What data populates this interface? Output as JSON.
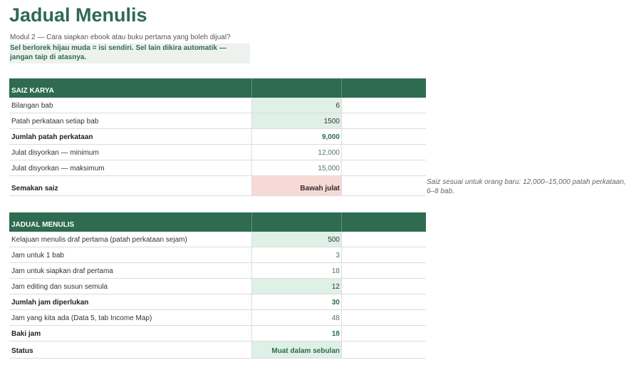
{
  "page": {
    "title": "Jadual Menulis",
    "subtitle": "Modul 2 — Cara siapkan ebook atau buku pertama yang boleh dijual?",
    "note": "Sel berlorek hijau muda = isi sendiri. Sel lain dikira automatik — jangan taip di atasnya."
  },
  "size_section": {
    "header": "SAIZ KARYA",
    "rows": [
      {
        "label": "Bilangan bab",
        "value": "6"
      },
      {
        "label": "Patah perkataan setiap bab",
        "value": "1500"
      },
      {
        "label": "Jumlah patah perkataan",
        "value": "9,000"
      },
      {
        "label": "Julat disyorkan — minimum",
        "value": "12,000"
      },
      {
        "label": "Julat disyorkan — maksimum",
        "value": "15,000"
      },
      {
        "label": "Semakan saiz",
        "value": "Bawah julat"
      }
    ],
    "comment": "Saiz sesuai untuk orang baru: 12,000–15,000 patah perkataan, 6–8 bab."
  },
  "schedule_section": {
    "header": "JADUAL MENULIS",
    "rows": [
      {
        "label": "Kelajuan menulis draf pertama (patah perkataan sejam)",
        "value": "500"
      },
      {
        "label": "Jam untuk 1 bab",
        "value": "3"
      },
      {
        "label": "Jam untuk siapkan draf pertama",
        "value": "18"
      },
      {
        "label": "Jam editing dan susun semula",
        "value": "12"
      },
      {
        "label": "Jumlah jam diperlukan",
        "value": "30"
      },
      {
        "label": "Jam yang kita ada (Data 5, tab Income Map)",
        "value": "48"
      },
      {
        "label": "Baki jam",
        "value": "18"
      },
      {
        "label": "Status",
        "value": "Muat dalam sebulan"
      }
    ]
  },
  "colors": {
    "header_green": "#2e6b50",
    "input_fill": "#dff0e6",
    "warning_fill": "#f7d9d5"
  }
}
